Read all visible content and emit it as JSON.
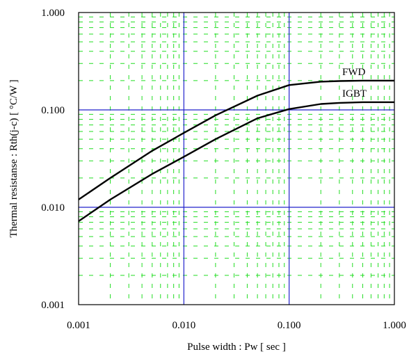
{
  "chart_data": {
    "type": "line",
    "xscale": "log",
    "yscale": "log",
    "xlim": [
      0.001,
      1.0
    ],
    "ylim": [
      0.001,
      1.0
    ],
    "xlabel": "Pulse width : Pw [ sec ]",
    "ylabel": "Thermal resistanse : Rth(j-c) [ °C/W ]",
    "x_ticks": [
      "0.001",
      "0.010",
      "0.100",
      "1.000"
    ],
    "y_ticks": [
      "0.001",
      "0.010",
      "0.100",
      "1.000"
    ],
    "major_grid_color": "#2222cc",
    "minor_grid_color": "#22dd22",
    "series": [
      {
        "name": "FWD",
        "color": "#000000",
        "x": [
          0.001,
          0.002,
          0.005,
          0.01,
          0.02,
          0.05,
          0.1,
          0.2,
          0.3,
          0.5,
          1.0
        ],
        "y": [
          0.012,
          0.02,
          0.038,
          0.058,
          0.088,
          0.14,
          0.18,
          0.195,
          0.198,
          0.2,
          0.2
        ]
      },
      {
        "name": "IGBT",
        "color": "#000000",
        "x": [
          0.001,
          0.002,
          0.005,
          0.01,
          0.02,
          0.05,
          0.1,
          0.2,
          0.3,
          0.5,
          1.0
        ],
        "y": [
          0.0072,
          0.012,
          0.022,
          0.033,
          0.05,
          0.082,
          0.102,
          0.115,
          0.118,
          0.12,
          0.12
        ]
      }
    ]
  }
}
